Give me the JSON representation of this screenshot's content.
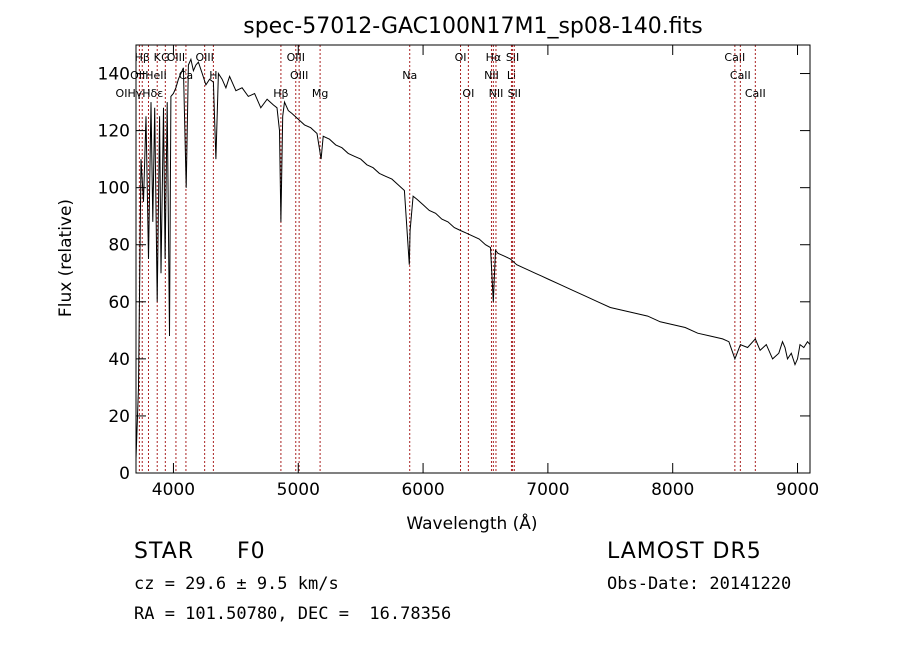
{
  "chart_data": {
    "type": "line",
    "title": "spec-57012-GAC100N17M1_sp08-140.fits",
    "xlabel": "Wavelength (Å)",
    "ylabel": "Flux (relative)",
    "xlim": [
      3700,
      9100
    ],
    "ylim": [
      0,
      150
    ],
    "xticks": [
      4000,
      5000,
      6000,
      7000,
      8000,
      9000
    ],
    "yticks": [
      0,
      20,
      40,
      60,
      80,
      100,
      120,
      140
    ],
    "grid": false,
    "series": [
      {
        "x": [
          3700,
          3720,
          3740,
          3760,
          3780,
          3800,
          3820,
          3835,
          3850,
          3870,
          3889,
          3900,
          3920,
          3933,
          3950,
          3968,
          3980,
          4000,
          4020,
          4040,
          4060,
          4080,
          4102,
          4120,
          4140,
          4160,
          4180,
          4200,
          4230,
          4260,
          4290,
          4320,
          4340,
          4360,
          4390,
          4420,
          4450,
          4500,
          4550,
          4600,
          4650,
          4700,
          4750,
          4800,
          4830,
          4850,
          4861,
          4875,
          4890,
          4920,
          4950,
          5000,
          5050,
          5100,
          5150,
          5183,
          5200,
          5250,
          5300,
          5350,
          5400,
          5450,
          5500,
          5550,
          5600,
          5650,
          5700,
          5750,
          5800,
          5850,
          5890,
          5896,
          5920,
          5950,
          6000,
          6050,
          6100,
          6150,
          6200,
          6250,
          6300,
          6350,
          6400,
          6450,
          6500,
          6540,
          6563,
          6580,
          6600,
          6650,
          6700,
          6750,
          6800,
          6850,
          6900,
          6950,
          7000,
          7100,
          7200,
          7300,
          7400,
          7500,
          7600,
          7700,
          7800,
          7900,
          8000,
          8100,
          8200,
          8300,
          8400,
          8450,
          8498,
          8542,
          8600,
          8662,
          8700,
          8750,
          8800,
          8850,
          8880,
          8900,
          8920,
          8950,
          8980,
          9000,
          9020,
          9050,
          9080,
          9100
        ],
        "values": [
          5,
          30,
          110,
          95,
          125,
          75,
          130,
          88,
          128,
          60,
          125,
          70,
          128,
          75,
          130,
          48,
          132,
          133,
          135,
          138,
          140,
          142,
          100,
          143,
          145,
          141,
          143,
          144,
          140,
          136,
          138,
          137,
          110,
          140,
          138,
          135,
          139,
          134,
          135,
          132,
          133,
          128,
          131,
          129,
          128,
          120,
          88,
          125,
          130,
          127,
          126,
          124,
          122,
          121,
          119,
          110,
          118,
          117,
          115,
          114,
          112,
          111,
          110,
          108,
          107,
          105,
          104,
          103,
          101,
          99,
          73,
          85,
          97,
          96,
          94,
          92,
          91,
          89,
          88,
          86,
          85,
          84,
          83,
          82,
          80,
          79,
          60,
          78,
          77,
          76,
          75,
          73,
          72,
          71,
          70,
          69,
          68,
          66,
          64,
          62,
          60,
          58,
          57,
          56,
          55,
          53,
          52,
          51,
          49,
          48,
          47,
          46,
          40,
          45,
          44,
          47,
          43,
          45,
          40,
          42,
          46,
          44,
          40,
          42,
          38,
          40,
          45,
          44,
          46,
          45
        ]
      }
    ],
    "lines": [
      {
        "label": "Hβ",
        "x": 3750,
        "row": 1,
        "color": "#aa2222"
      },
      {
        "label": "K",
        "x": 3870,
        "row": 1,
        "color": "#aa2222"
      },
      {
        "label": "G",
        "x": 3935,
        "row": 1,
        "color": "#aa2222"
      },
      {
        "label": "OIII",
        "x": 4020,
        "row": 1,
        "color": "#aa2222"
      },
      {
        "label": "OIII",
        "x": 4250,
        "row": 1,
        "color": "#aa2222"
      },
      {
        "label": "OIII",
        "x": 4980,
        "row": 1,
        "color": "#aa2222"
      },
      {
        "label": "OI",
        "x": 6300,
        "row": 1,
        "color": "#aa2222"
      },
      {
        "label": "Hα",
        "x": 6563,
        "row": 1,
        "color": "#aa2222"
      },
      {
        "label": "SII",
        "x": 6717,
        "row": 1,
        "color": "#aa2222"
      },
      {
        "label": "CaII",
        "x": 8498,
        "row": 1,
        "color": "#aa2222"
      },
      {
        "label": "OIIHeII",
        "x": 3800,
        "row": 2,
        "color": "#aa2222"
      },
      {
        "label": "Ca",
        "x": 4100,
        "row": 2,
        "color": "#aa2222"
      },
      {
        "label": "H",
        "x": 4320,
        "row": 2,
        "color": "#aa2222"
      },
      {
        "label": "OIII",
        "x": 5007,
        "row": 2,
        "color": "#aa2222"
      },
      {
        "label": "Na",
        "x": 5893,
        "row": 2,
        "color": "#aa2222"
      },
      {
        "label": "NII",
        "x": 6548,
        "row": 2,
        "color": "#aa2222"
      },
      {
        "label": "Li",
        "x": 6708,
        "row": 2,
        "color": "#aa2222"
      },
      {
        "label": "CaII",
        "x": 8542,
        "row": 2,
        "color": "#aa2222"
      },
      {
        "label": "OIHγHδε",
        "x": 3727,
        "row": 3,
        "color": "#aa2222"
      },
      {
        "label": "Hβ",
        "x": 4861,
        "row": 3,
        "color": "#aa2222"
      },
      {
        "label": "Mg",
        "x": 5175,
        "row": 3,
        "color": "#aa2222"
      },
      {
        "label": "OI",
        "x": 6363,
        "row": 3,
        "color": "#aa2222"
      },
      {
        "label": "NII",
        "x": 6584,
        "row": 3,
        "color": "#aa2222"
      },
      {
        "label": "SII",
        "x": 6731,
        "row": 3,
        "color": "#aa2222"
      },
      {
        "label": "CaII",
        "x": 8662,
        "row": 3,
        "color": "#aa2222"
      }
    ]
  },
  "info": {
    "object_class": "STAR",
    "subclass": "F0",
    "survey": "LAMOST DR5",
    "redshift": "cz = 29.6 ± 9.5 km/s",
    "obs_date": "Obs-Date: 20141220",
    "coords": "RA = 101.50780, DEC =  16.78356"
  }
}
